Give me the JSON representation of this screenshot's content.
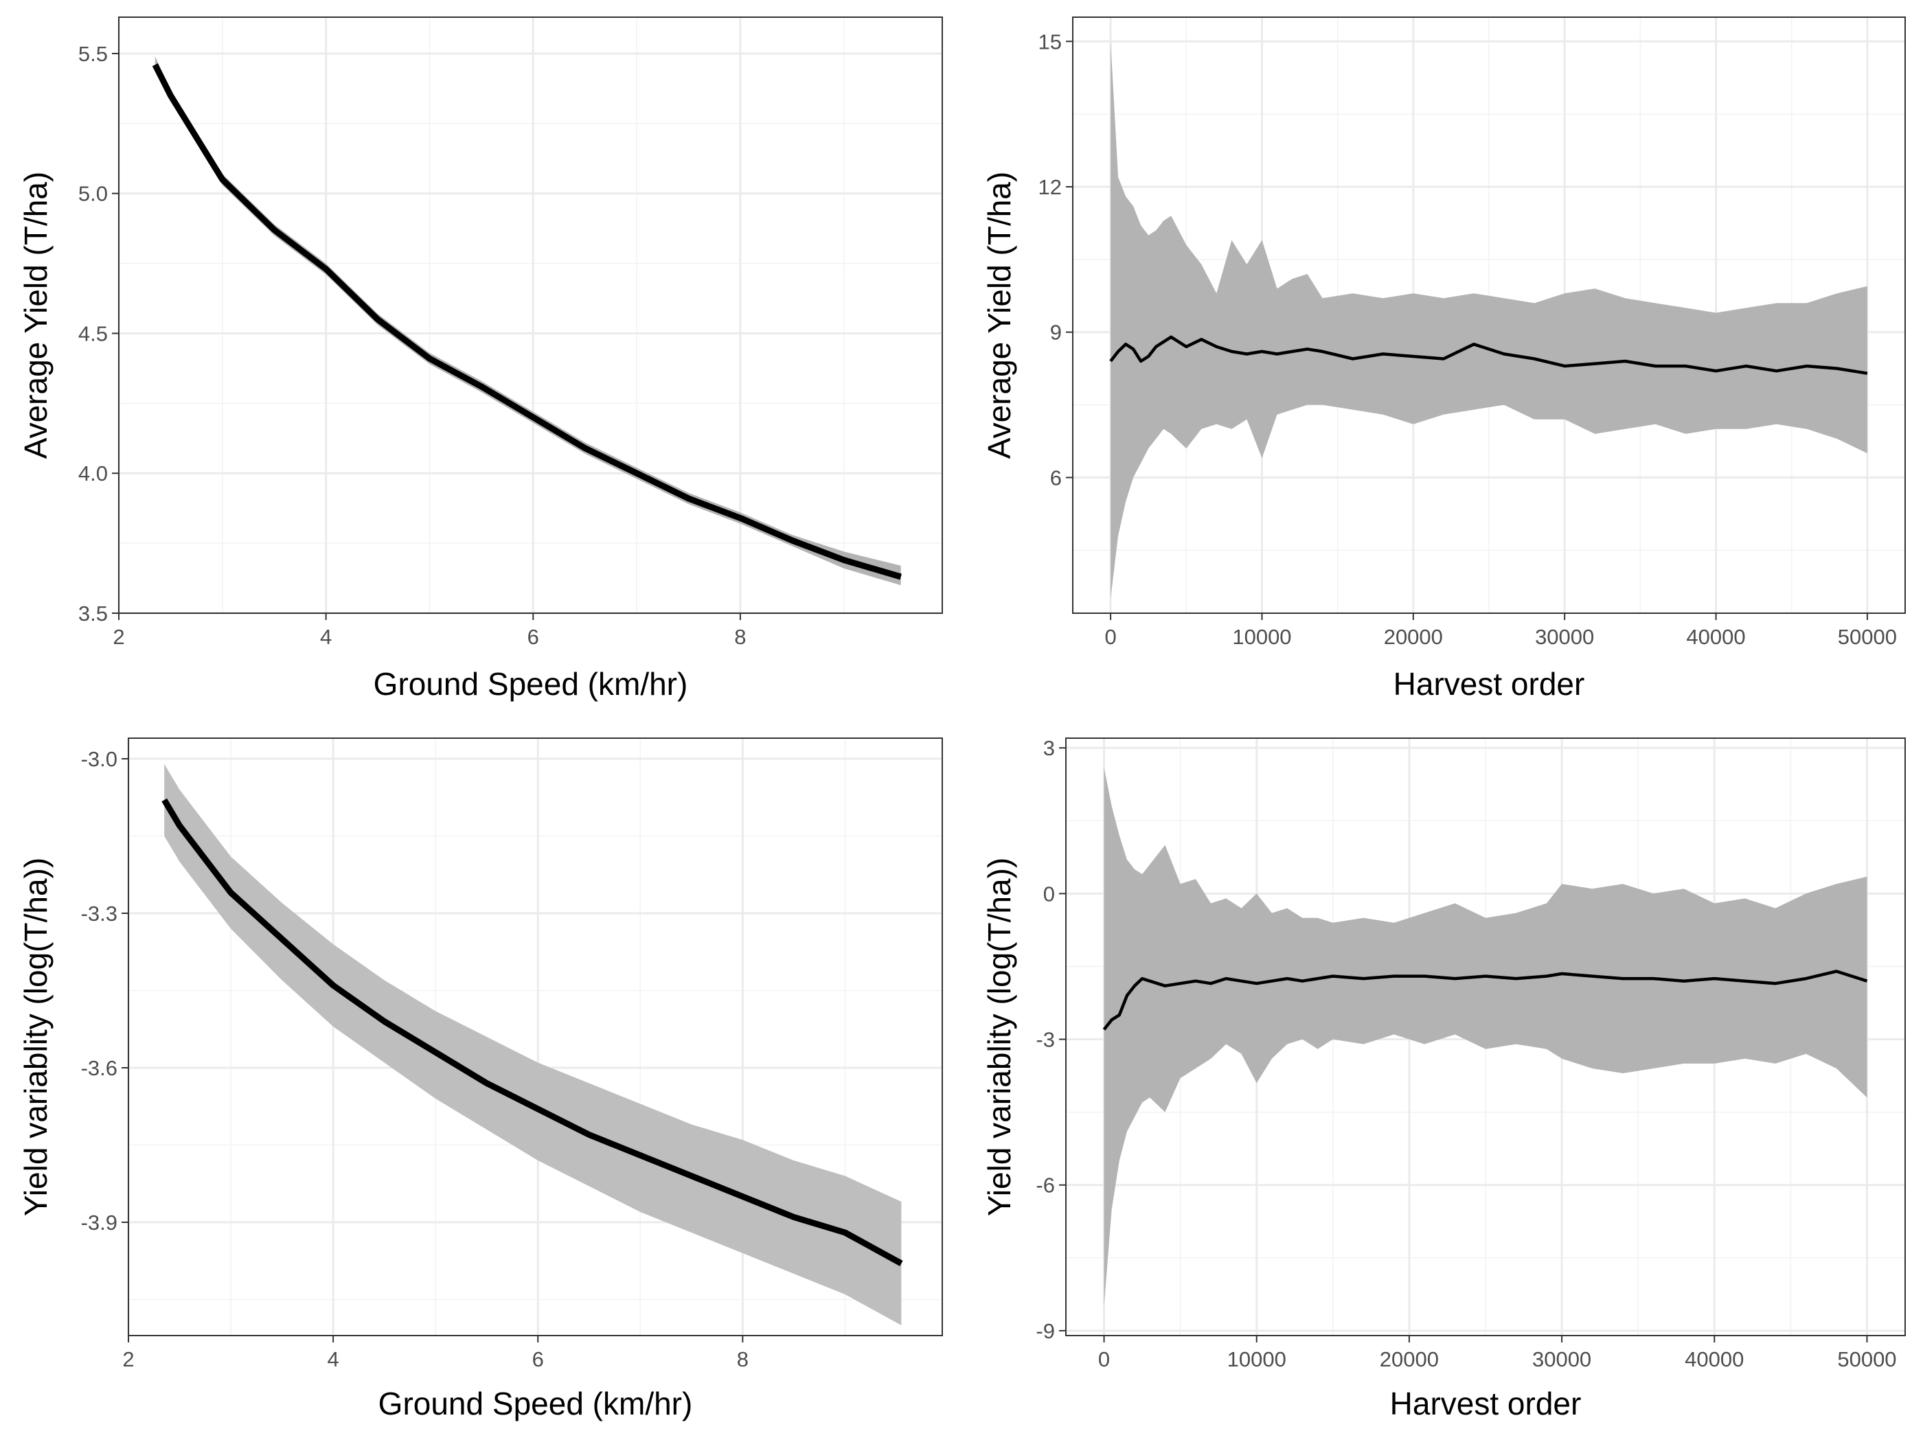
{
  "colors": {
    "ribbon": "#b3b3b3",
    "ribbon_bottom_left": "#bebebe",
    "line": "#000000"
  },
  "chart_data": [
    {
      "type": "line",
      "xlabel": "Ground Speed (km/hr)",
      "ylabel": "Average Yield (T/ha)",
      "xlim": [
        2,
        9.95
      ],
      "ylim": [
        3.5,
        5.63
      ],
      "xticks": [
        2,
        4,
        6,
        8
      ],
      "xtick_labels": [
        "2",
        "4",
        "6",
        "8"
      ],
      "yticks": [
        3.5,
        4.0,
        4.5,
        5.0,
        5.5
      ],
      "ytick_labels": [
        "3.5",
        "4.0",
        "4.5",
        "5.0",
        "5.5"
      ],
      "series": [
        {
          "x": [
            2.35,
            2.5,
            3,
            3.5,
            4,
            4.5,
            5,
            5.5,
            6,
            6.5,
            7,
            7.5,
            8,
            8.5,
            9,
            9.55
          ],
          "y": [
            5.46,
            5.35,
            5.05,
            4.87,
            4.73,
            4.55,
            4.41,
            4.31,
            4.2,
            4.09,
            4.0,
            3.91,
            3.84,
            3.76,
            3.69,
            3.63
          ],
          "lower": [
            5.44,
            5.33,
            5.03,
            4.85,
            4.71,
            4.53,
            4.39,
            4.29,
            4.18,
            4.07,
            3.98,
            3.89,
            3.82,
            3.74,
            3.66,
            3.6
          ],
          "upper": [
            5.49,
            5.37,
            5.07,
            4.89,
            4.75,
            4.57,
            4.43,
            4.33,
            4.22,
            4.11,
            4.02,
            3.93,
            3.86,
            3.78,
            3.72,
            3.67
          ]
        }
      ]
    },
    {
      "type": "line",
      "xlabel": "Harvest order",
      "ylabel": "Average Yield (T/ha)",
      "xlim": [
        -2500,
        52500
      ],
      "ylim": [
        3.2,
        15.5
      ],
      "xticks": [
        0,
        10000,
        20000,
        30000,
        40000,
        50000
      ],
      "xtick_labels": [
        "0",
        "10000",
        "20000",
        "30000",
        "40000",
        "50000"
      ],
      "yticks": [
        6,
        9,
        12,
        15
      ],
      "ytick_labels": [
        "6",
        "9",
        "12",
        "15"
      ],
      "series": [
        {
          "x": [
            0,
            500,
            1000,
            1500,
            2000,
            2500,
            3000,
            3500,
            4000,
            5000,
            6000,
            7000,
            8000,
            9000,
            10000,
            11000,
            12000,
            13000,
            14000,
            16000,
            18000,
            20000,
            22000,
            24000,
            26000,
            28000,
            30000,
            32000,
            34000,
            36000,
            38000,
            40000,
            42000,
            44000,
            46000,
            48000,
            50000
          ],
          "y": [
            8.4,
            8.6,
            8.75,
            8.65,
            8.4,
            8.5,
            8.7,
            8.8,
            8.9,
            8.7,
            8.85,
            8.7,
            8.6,
            8.55,
            8.6,
            8.55,
            8.6,
            8.65,
            8.6,
            8.45,
            8.55,
            8.5,
            8.45,
            8.75,
            8.55,
            8.45,
            8.3,
            8.35,
            8.4,
            8.3,
            8.3,
            8.2,
            8.3,
            8.2,
            8.3,
            8.25,
            8.15
          ],
          "lower": [
            3.5,
            4.8,
            5.5,
            6.0,
            6.3,
            6.6,
            6.8,
            7.0,
            6.9,
            6.6,
            7.0,
            7.1,
            7.0,
            7.2,
            6.4,
            7.3,
            7.4,
            7.5,
            7.5,
            7.4,
            7.3,
            7.1,
            7.3,
            7.4,
            7.5,
            7.2,
            7.2,
            6.9,
            7.0,
            7.1,
            6.9,
            7.0,
            7.0,
            7.1,
            7.0,
            6.8,
            6.5
          ],
          "upper": [
            15.0,
            12.2,
            11.8,
            11.6,
            11.2,
            11.0,
            11.1,
            11.3,
            11.4,
            10.8,
            10.4,
            9.8,
            10.9,
            10.4,
            10.9,
            9.9,
            10.1,
            10.2,
            9.7,
            9.8,
            9.7,
            9.8,
            9.7,
            9.8,
            9.7,
            9.6,
            9.8,
            9.9,
            9.7,
            9.6,
            9.5,
            9.4,
            9.5,
            9.6,
            9.6,
            9.8,
            9.95
          ]
        }
      ]
    },
    {
      "type": "line",
      "xlabel": "Ground Speed (km/hr)",
      "ylabel": "Yield variablity (log(T/ha))",
      "xlim": [
        2,
        9.95
      ],
      "ylim": [
        -4.12,
        -2.96
      ],
      "xticks": [
        2,
        4,
        6,
        8
      ],
      "xtick_labels": [
        "2",
        "4",
        "6",
        "8"
      ],
      "yticks": [
        -3.0,
        -3.3,
        -3.6,
        -3.9
      ],
      "ytick_labels": [
        "-3.0",
        "-3.3",
        "-3.6",
        "-3.9"
      ],
      "series": [
        {
          "x": [
            2.35,
            2.5,
            3,
            3.5,
            4,
            4.5,
            5,
            5.5,
            6,
            6.5,
            7,
            7.5,
            8,
            8.5,
            9,
            9.55
          ],
          "y": [
            -3.08,
            -3.13,
            -3.26,
            -3.35,
            -3.44,
            -3.51,
            -3.57,
            -3.63,
            -3.68,
            -3.73,
            -3.77,
            -3.81,
            -3.85,
            -3.89,
            -3.92,
            -3.98
          ],
          "lower": [
            -3.15,
            -3.2,
            -3.33,
            -3.43,
            -3.52,
            -3.59,
            -3.66,
            -3.72,
            -3.78,
            -3.83,
            -3.88,
            -3.92,
            -3.96,
            -4.0,
            -4.04,
            -4.1
          ],
          "upper": [
            -3.01,
            -3.06,
            -3.19,
            -3.28,
            -3.36,
            -3.43,
            -3.49,
            -3.54,
            -3.59,
            -3.63,
            -3.67,
            -3.71,
            -3.74,
            -3.78,
            -3.81,
            -3.86
          ]
        }
      ]
    },
    {
      "type": "line",
      "xlabel": "Harvest order",
      "ylabel": "Yield variablity (log(T/ha))",
      "xlim": [
        -2500,
        52500
      ],
      "ylim": [
        -9.1,
        3.2
      ],
      "xticks": [
        0,
        10000,
        20000,
        30000,
        40000,
        50000
      ],
      "xtick_labels": [
        "0",
        "10000",
        "20000",
        "30000",
        "40000",
        "50000"
      ],
      "yticks": [
        -9,
        -6,
        -3,
        0,
        3
      ],
      "ytick_labels": [
        "-9",
        "-6",
        "-3",
        "0",
        "3"
      ],
      "series": [
        {
          "x": [
            0,
            500,
            1000,
            1500,
            2000,
            2500,
            3000,
            4000,
            5000,
            6000,
            7000,
            8000,
            9000,
            10000,
            11000,
            12000,
            13000,
            14000,
            15000,
            17000,
            19000,
            21000,
            23000,
            25000,
            27000,
            29000,
            30000,
            32000,
            34000,
            36000,
            38000,
            40000,
            42000,
            44000,
            46000,
            48000,
            50000
          ],
          "y": [
            -2.8,
            -2.6,
            -2.5,
            -2.1,
            -1.9,
            -1.75,
            -1.8,
            -1.9,
            -1.85,
            -1.8,
            -1.85,
            -1.75,
            -1.8,
            -1.85,
            -1.8,
            -1.75,
            -1.8,
            -1.75,
            -1.7,
            -1.75,
            -1.7,
            -1.7,
            -1.75,
            -1.7,
            -1.75,
            -1.7,
            -1.65,
            -1.7,
            -1.75,
            -1.75,
            -1.8,
            -1.75,
            -1.8,
            -1.85,
            -1.75,
            -1.6,
            -1.8
          ],
          "lower": [
            -8.5,
            -6.5,
            -5.5,
            -4.9,
            -4.6,
            -4.3,
            -4.2,
            -4.5,
            -3.8,
            -3.6,
            -3.4,
            -3.1,
            -3.3,
            -3.9,
            -3.4,
            -3.1,
            -3.0,
            -3.2,
            -3.0,
            -3.1,
            -2.9,
            -3.1,
            -2.9,
            -3.2,
            -3.1,
            -3.2,
            -3.4,
            -3.6,
            -3.7,
            -3.6,
            -3.5,
            -3.5,
            -3.4,
            -3.5,
            -3.3,
            -3.6,
            -4.2
          ],
          "upper": [
            2.6,
            1.8,
            1.2,
            0.7,
            0.5,
            0.4,
            0.6,
            1.0,
            0.2,
            0.3,
            -0.2,
            -0.1,
            -0.3,
            0.0,
            -0.4,
            -0.3,
            -0.5,
            -0.5,
            -0.6,
            -0.5,
            -0.6,
            -0.4,
            -0.2,
            -0.5,
            -0.4,
            -0.2,
            0.2,
            0.1,
            0.2,
            0.0,
            0.1,
            -0.2,
            -0.1,
            -0.3,
            0.0,
            0.2,
            0.35
          ]
        }
      ]
    }
  ]
}
